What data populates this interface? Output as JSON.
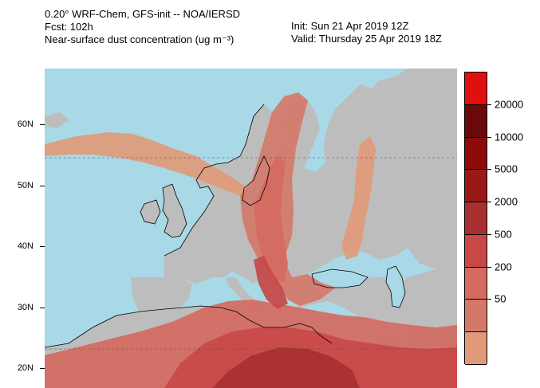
{
  "header": {
    "left_lines": [
      "0.20° WRF-Chem, GFS-init -- NOA/IERSD",
      "Fcst: 102h",
      "Near-surface dust concentration (ug m⁻³)"
    ],
    "init": "Init: Sun 21 Apr 2019  12Z",
    "valid": "Valid: Thursday 25 Apr 2019  18Z"
  },
  "map": {
    "lat_labels": [
      {
        "label": "60N",
        "lat": 60
      },
      {
        "label": "50N",
        "lat": 50
      },
      {
        "label": "40N",
        "lat": 40
      },
      {
        "label": "30N",
        "lat": 30
      },
      {
        "label": "20N",
        "lat": 20
      }
    ],
    "colors": {
      "sea": "#a9d8e6",
      "land": "#bdbdbd",
      "coast": "#000000",
      "grid": "#555555"
    }
  },
  "legend": {
    "labels": [
      "20000",
      "10000",
      "5000",
      "2000",
      "500",
      "200",
      "50"
    ],
    "colors": [
      "#e01010",
      "#6a0a0a",
      "#8c0a0a",
      "#9a1818",
      "#a83030",
      "#c84848",
      "#d46a60",
      "#d4786a",
      "#e09a78"
    ]
  }
}
